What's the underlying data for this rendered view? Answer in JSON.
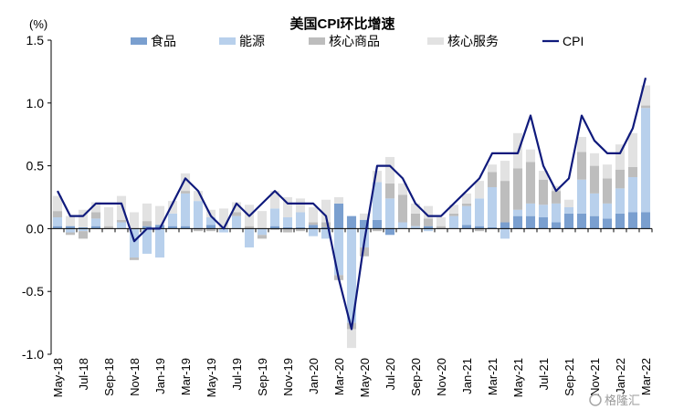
{
  "chart_data": {
    "type": "bar",
    "title": "美国CPI环比增速",
    "unit_label": "(%)",
    "ylim": [
      -1.0,
      1.5
    ],
    "yticks": [
      "1.5",
      "1.0",
      "0.5",
      "0.0",
      "-0.5",
      "-1.0"
    ],
    "ytick_values": [
      1.5,
      1.0,
      0.5,
      0.0,
      -0.5,
      -1.0
    ],
    "legend_position": "top",
    "stacked": true,
    "categories": [
      "May-18",
      "Jun-18",
      "Jul-18",
      "Aug-18",
      "Sep-18",
      "Oct-18",
      "Nov-18",
      "Dec-18",
      "Jan-19",
      "Feb-19",
      "Mar-19",
      "Apr-19",
      "May-19",
      "Jun-19",
      "Jul-19",
      "Aug-19",
      "Sep-19",
      "Oct-19",
      "Nov-19",
      "Dec-19",
      "Jan-20",
      "Feb-20",
      "Mar-20",
      "Apr-20",
      "May-20",
      "Jun-20",
      "Jul-20",
      "Aug-20",
      "Sep-20",
      "Oct-20",
      "Nov-20",
      "Dec-20",
      "Jan-21",
      "Feb-21",
      "Mar-21",
      "Apr-21",
      "May-21",
      "Jun-21",
      "Jul-21",
      "Aug-21",
      "Sep-21",
      "Oct-21",
      "Nov-21",
      "Dec-21",
      "Jan-22",
      "Feb-22",
      "Mar-22"
    ],
    "xtick_labels": [
      "May-18",
      "Jul-18",
      "Sep-18",
      "Nov-18",
      "Jan-19",
      "Mar-19",
      "May-19",
      "Jul-19",
      "Sep-19",
      "Nov-19",
      "Jan-20",
      "Mar-20",
      "May-20",
      "Jul-20",
      "Sep-20",
      "Nov-20",
      "Jan-21",
      "Mar-21",
      "May-21",
      "Jul-21",
      "Sep-21",
      "Nov-21",
      "Jan-22",
      "Mar-22"
    ],
    "series": [
      {
        "name": "食品",
        "kind": "bar",
        "color": "#7a9fcf",
        "values": [
          0.02,
          0.02,
          0.01,
          0.02,
          0.0,
          0.0,
          0.0,
          0.02,
          0.03,
          0.02,
          0.02,
          0.0,
          0.03,
          0.0,
          0.0,
          0.0,
          0.0,
          0.02,
          0.01,
          0.01,
          0.03,
          0.01,
          0.2,
          0.1,
          0.07,
          0.07,
          -0.05,
          0.0,
          0.0,
          0.02,
          0.0,
          0.0,
          0.03,
          0.02,
          0.01,
          0.05,
          0.1,
          0.1,
          0.09,
          0.05,
          0.12,
          0.12,
          0.1,
          0.08,
          0.12,
          0.13,
          0.13
        ]
      },
      {
        "name": "能源",
        "kind": "bar",
        "color": "#b8d0ec",
        "values": [
          0.07,
          -0.03,
          -0.02,
          0.06,
          0.0,
          0.05,
          -0.23,
          -0.2,
          -0.23,
          0.1,
          0.26,
          0.22,
          0.06,
          -0.03,
          0.1,
          -0.15,
          -0.05,
          0.14,
          0.08,
          0.12,
          -0.06,
          -0.08,
          -0.37,
          -0.75,
          -0.15,
          0.3,
          0.24,
          0.05,
          0.02,
          -0.02,
          0.0,
          0.1,
          0.15,
          0.22,
          0.32,
          -0.08,
          0.05,
          0.1,
          0.1,
          0.15,
          0.05,
          0.27,
          0.18,
          0.12,
          0.2,
          0.28,
          0.83
        ]
      },
      {
        "name": "核心商品",
        "kind": "bar",
        "color": "#bdbdbd",
        "values": [
          0.05,
          -0.02,
          -0.06,
          0.05,
          0.02,
          0.02,
          -0.02,
          0.04,
          0.0,
          0.0,
          0.02,
          -0.02,
          -0.02,
          0.0,
          0.03,
          0.02,
          -0.03,
          -0.01,
          -0.03,
          -0.02,
          0.02,
          0.04,
          -0.04,
          -0.05,
          -0.07,
          -0.02,
          0.12,
          0.22,
          0.1,
          0.06,
          0.02,
          0.02,
          0.02,
          -0.02,
          0.12,
          0.33,
          0.33,
          0.33,
          0.2,
          0.1,
          0.0,
          0.22,
          0.22,
          0.2,
          0.15,
          0.08,
          0.02
        ]
      },
      {
        "name": "核心服务",
        "kind": "bar",
        "color": "#e2e2e2",
        "values": [
          0.12,
          0.08,
          0.14,
          0.08,
          0.15,
          0.19,
          0.13,
          0.14,
          0.15,
          0.1,
          0.14,
          0.08,
          0.06,
          0.16,
          0.08,
          0.17,
          0.14,
          0.14,
          0.16,
          0.11,
          0.12,
          0.18,
          0.05,
          -0.15,
          0.05,
          0.09,
          0.21,
          0.09,
          0.08,
          0.1,
          0.07,
          0.07,
          0.08,
          0.14,
          0.06,
          0.16,
          0.28,
          0.1,
          0.07,
          0.04,
          0.06,
          0.12,
          0.1,
          0.11,
          0.2,
          0.27,
          0.16
        ]
      },
      {
        "name": "CPI",
        "kind": "line",
        "color": "#0f1a7c",
        "values": [
          0.3,
          0.1,
          0.1,
          0.2,
          0.2,
          0.2,
          -0.1,
          0.0,
          0.0,
          0.2,
          0.4,
          0.3,
          0.1,
          0.0,
          0.2,
          0.1,
          0.2,
          0.3,
          0.2,
          0.2,
          0.2,
          0.1,
          -0.4,
          -0.8,
          -0.1,
          0.5,
          0.5,
          0.4,
          0.2,
          0.1,
          0.1,
          0.2,
          0.3,
          0.4,
          0.6,
          0.6,
          0.6,
          0.9,
          0.5,
          0.3,
          0.4,
          0.9,
          0.7,
          0.6,
          0.6,
          0.8,
          1.2
        ]
      }
    ]
  },
  "watermark": "格隆汇"
}
